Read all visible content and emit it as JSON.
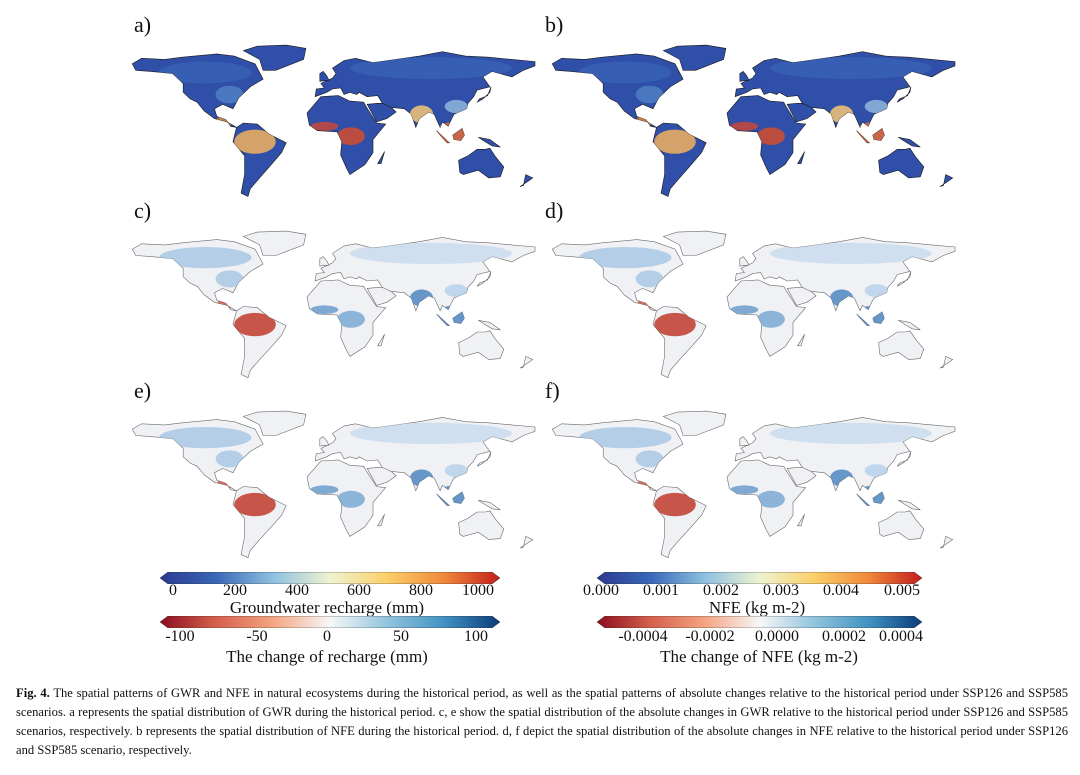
{
  "panels": [
    {
      "label": "a)",
      "variable": "Groundwater recharge",
      "scheme": "abs"
    },
    {
      "label": "b)",
      "variable": "NFE",
      "scheme": "abs"
    },
    {
      "label": "c)",
      "variable": "The change of recharge",
      "scheme": "chg"
    },
    {
      "label": "d)",
      "variable": "The change of NFE",
      "scheme": "chg"
    },
    {
      "label": "e)",
      "variable": "The change of recharge",
      "scheme": "chg"
    },
    {
      "label": "f)",
      "variable": "The change of NFE",
      "scheme": "chg"
    }
  ],
  "colorbars": {
    "gwr_abs": {
      "ticks": [
        "0",
        "200",
        "400",
        "600",
        "800",
        "1000"
      ],
      "title": "Groundwater recharge (mm)",
      "colors": [
        "#2b3990",
        "#3a68b8",
        "#8fc1e0",
        "#eef3d0",
        "#fbd06a",
        "#f08a3a",
        "#c21d1d"
      ]
    },
    "gwr_chg": {
      "ticks": [
        "-100",
        "-50",
        "0",
        "50",
        "100"
      ],
      "title": "The change of recharge (mm)",
      "colors": [
        "#8b0d1e",
        "#d6604d",
        "#f4a582",
        "#f7f7f7",
        "#92c5de",
        "#4393c3",
        "#0b3c78"
      ]
    },
    "nfe_abs": {
      "ticks": [
        "0.000",
        "0.001",
        "0.002",
        "0.003",
        "0.004",
        "0.005"
      ],
      "title": "NFE (kg m-2)",
      "colors": [
        "#2b3990",
        "#3a68b8",
        "#8fc1e0",
        "#eef3d0",
        "#fbd06a",
        "#f08a3a",
        "#c21d1d"
      ]
    },
    "nfe_chg": {
      "ticks": [
        "-0.0004",
        "-0.0002",
        "0.0000",
        "0.0002",
        "0.0004"
      ],
      "title": "The change of NFE (kg m-2)",
      "colors": [
        "#8b0d1e",
        "#d6604d",
        "#f4a582",
        "#f7f7f7",
        "#92c5de",
        "#4393c3",
        "#0b3c78"
      ]
    }
  },
  "caption": {
    "fig_label": "Fig. 4.",
    "text": "The spatial patterns of GWR and NFE in natural ecosystems during the historical period, as well as the spatial patterns of absolute changes relative to the historical period under SSP126 and SSP585 scenarios. a represents the spatial distribution of GWR during the historical period. c, e show the spatial distribution of the absolute changes in GWR relative to the historical period under SSP126 and SSP585 scenarios, respectively. b represents the spatial distribution of NFE during the historical period. d, f depict the spatial distribution of the absolute changes in NFE relative to the historical period under SSP126 and SSP585 scenario, respectively."
  }
}
